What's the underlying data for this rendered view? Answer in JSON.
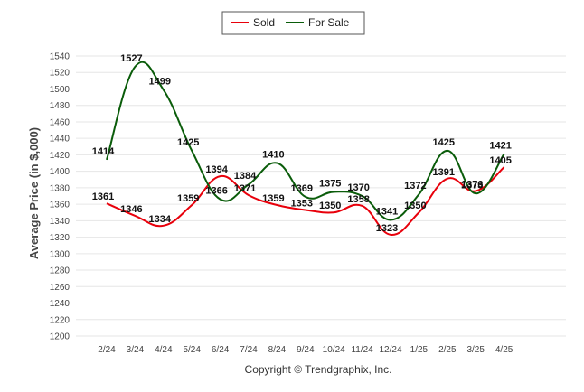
{
  "chart_data": {
    "type": "line",
    "categories": [
      "2/24",
      "3/24",
      "4/24",
      "5/24",
      "6/24",
      "7/24",
      "8/24",
      "9/24",
      "10/24",
      "11/24",
      "12/24",
      "1/25",
      "2/25",
      "3/25",
      "4/25"
    ],
    "series": [
      {
        "name": "Sold",
        "color": "#e8000b",
        "values": [
          1361,
          1346,
          1334,
          1359,
          1394,
          1371,
          1359,
          1353,
          1350,
          1358,
          1323,
          1350,
          1391,
          1376,
          1405
        ]
      },
      {
        "name": "For Sale",
        "color": "#0a5c0a",
        "values": [
          1414,
          1527,
          1499,
          1425,
          1366,
          1384,
          1410,
          1369,
          1375,
          1370,
          1341,
          1372,
          1425,
          1373,
          1421
        ]
      }
    ],
    "ylabel": "Average Price (in $,000)",
    "ylim": [
      1200,
      1540
    ],
    "yticks": [
      1200,
      1220,
      1240,
      1260,
      1280,
      1300,
      1320,
      1340,
      1360,
      1380,
      1400,
      1420,
      1440,
      1460,
      1480,
      1500,
      1520,
      1540
    ],
    "grid": true,
    "legend": "top-center",
    "footer": "Copyright © Trendgraphix, Inc."
  }
}
